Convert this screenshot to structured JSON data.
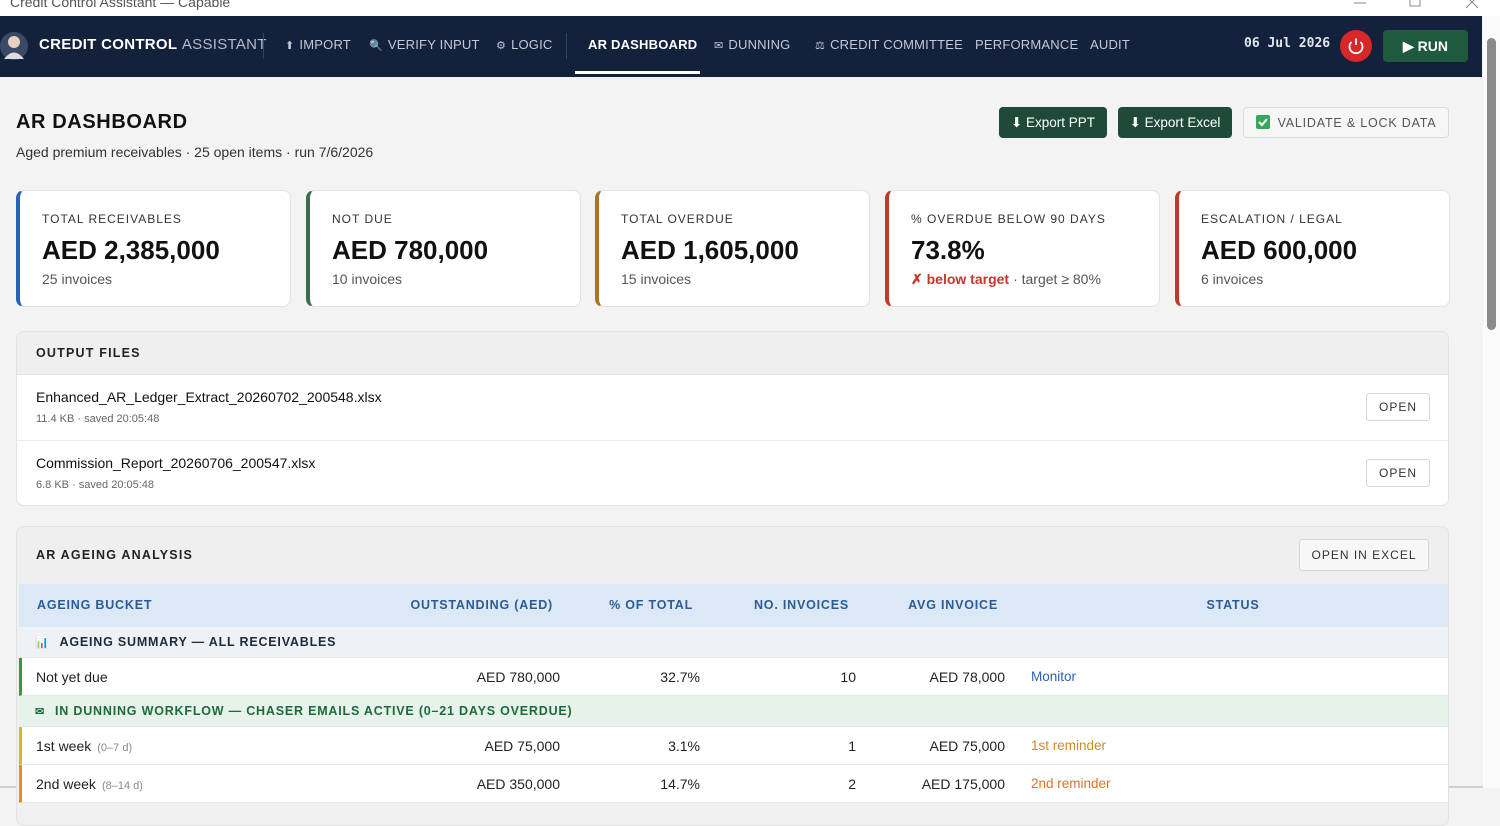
{
  "window": {
    "title": "Credit Control Assistant — Capable"
  },
  "nav": {
    "brand": "CREDIT CONTROL",
    "brand_suffix": "ASSISTANT",
    "items": [
      {
        "icon": "⬆",
        "label": "IMPORT"
      },
      {
        "icon": "🔍",
        "label": "VERIFY INPUT"
      },
      {
        "icon": "⚙",
        "label": "LOGIC"
      },
      {
        "label": "AR DASHBOARD",
        "active": true
      },
      {
        "icon": "✉",
        "label": "DUNNING"
      },
      {
        "icon": "⚖",
        "label": "CREDIT COMMITTEE"
      },
      {
        "label": "PERFORMANCE"
      },
      {
        "label": "AUDIT"
      }
    ],
    "date": "06 Jul 2026",
    "run": "▶ RUN"
  },
  "header": {
    "title": "AR DASHBOARD",
    "subtitle": "Aged premium receivables · 25 open items · run 7/6/2026",
    "buttons": [
      "⬇ Export PPT",
      "⬇ Export Excel",
      "VALIDATE & LOCK DATA"
    ]
  },
  "cards": [
    {
      "label": "TOTAL RECEIVABLES",
      "value": "AED 2,385,000",
      "note": "25 invoices",
      "color": "#2a62b8"
    },
    {
      "label": "NOT DUE",
      "value": "AED 780,000",
      "note": "10 invoices",
      "color": "#3d6b4e"
    },
    {
      "label": "TOTAL OVERDUE",
      "value": "AED 1,605,000",
      "note": "15 invoices",
      "color": "#a8742a"
    },
    {
      "label": "% OVERDUE BELOW 90 DAYS",
      "value": "73.8%",
      "flag": "✗ below target",
      "note": "· target ≥ 80%",
      "color": "#c0392b"
    },
    {
      "label": "ESCALATION / LEGAL",
      "value": "AED 600,000",
      "note": "6 invoices",
      "color": "#c0392b"
    }
  ],
  "output_files": {
    "title": "OUTPUT FILES",
    "files": [
      {
        "name": "Enhanced_AR_Ledger_Extract_20260702_200548.xlsx",
        "meta": "11.4 KB · saved 20:05:48",
        "action": "OPEN"
      },
      {
        "name": "Commission_Report_20260706_200547.xlsx",
        "meta": "6.8 KB · saved 20:05:48",
        "action": "OPEN"
      }
    ]
  },
  "ageing": {
    "title": "AR AGEING ANALYSIS",
    "action": "OPEN IN EXCEL",
    "columns": [
      "AGEING BUCKET",
      "OUTSTANDING (AED)",
      "% OF TOTAL",
      "NO. INVOICES",
      "AVG INVOICE",
      "STATUS"
    ],
    "rows": [
      {
        "icon": "📊",
        "section": "AGEING SUMMARY — ALL RECEIVABLES",
        "color": "#1f2a3a",
        "background": "#eef1f6"
      },
      {
        "bucket": "Not yet due",
        "cells": [
          "AED 780,000",
          "32.7%",
          "10",
          "AED 78,000"
        ],
        "status": "Monitor",
        "color": "#2a62b8",
        "accent": "#2e9a4a"
      },
      {
        "icon": "✉",
        "section": "IN DUNNING WORKFLOW — CHASER EMAILS ACTIVE (0–21 DAYS OVERDUE)",
        "color": "#1d6b3a",
        "background": "#e6f2ea"
      },
      {
        "bucket": "1st week",
        "range": "(0–7 d)",
        "cells": [
          "AED 75,000",
          "3.1%",
          "1",
          "AED 75,000"
        ],
        "status": "1st reminder",
        "color": "#d08a2a",
        "accent": "#e0b030"
      },
      {
        "bucket": "2nd week",
        "range": "(8–14 d)",
        "cells": [
          "AED 350,000",
          "14.7%",
          "2",
          "AED 175,000"
        ],
        "status": "2nd reminder",
        "color": "#d9742a",
        "accent": "#e8892a"
      }
    ]
  }
}
